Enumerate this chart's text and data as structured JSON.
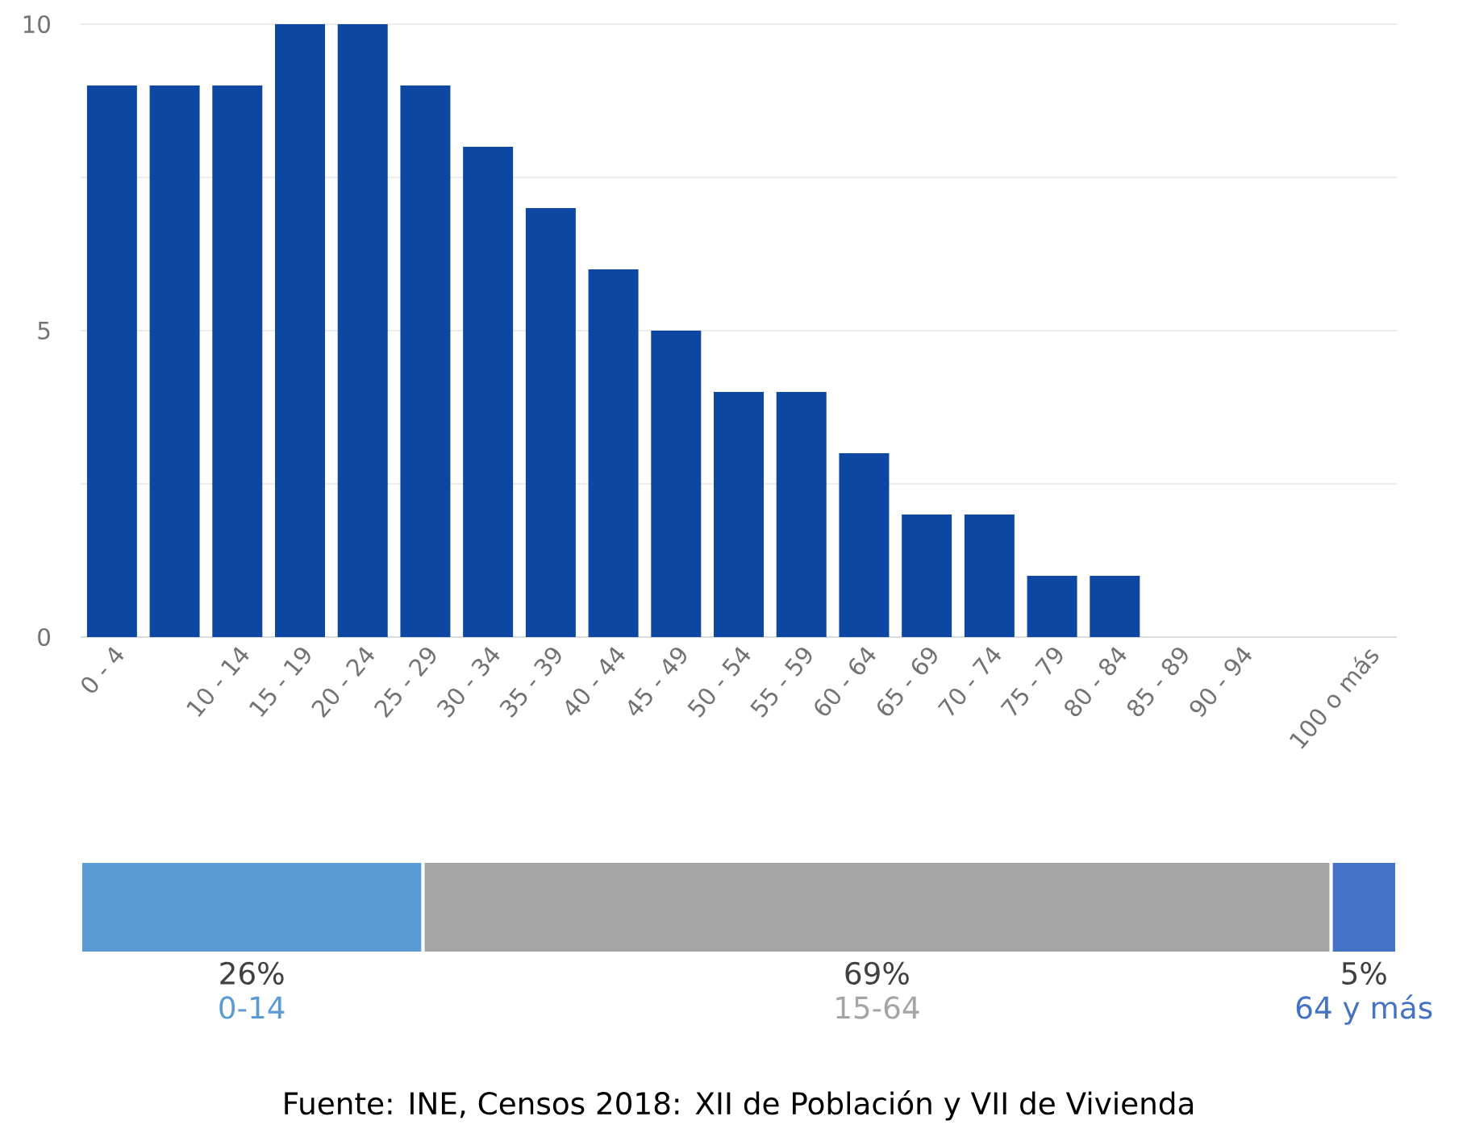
{
  "chart_data": [
    {
      "type": "bar",
      "categories": [
        "0 - 4",
        null,
        "10 - 14",
        "15 - 19",
        "20 - 24",
        "25 - 29",
        "30 - 34",
        "35 - 39",
        "40 - 44",
        "45 - 49",
        "50 - 54",
        "55 - 59",
        "60 - 64",
        "65 - 69",
        "70 - 74",
        "75 - 79",
        "80 - 84",
        "85 - 89",
        "90 - 94",
        null,
        "100 o más"
      ],
      "values": [
        9,
        9,
        9,
        10,
        10,
        9,
        8,
        7,
        6,
        5,
        4,
        4,
        3,
        2,
        2,
        1,
        1,
        0,
        0,
        0,
        0
      ],
      "color": "#0d47a1",
      "ylim": [
        0,
        10
      ],
      "yticks": [
        0,
        {
          "value": 2.5,
          "label": null
        },
        5,
        {
          "value": 7.5,
          "label": null
        },
        10
      ],
      "grid": "y"
    },
    {
      "type": "bar",
      "orientation": "horizontal",
      "stacked": true,
      "categories": [
        null
      ],
      "series": [
        {
          "name": "0-14",
          "color": "#5b9bd5",
          "values": [
            26
          ],
          "value_labels": [
            "26%"
          ]
        },
        {
          "name": "15-64",
          "color": "#a5a5a5",
          "values": [
            69
          ],
          "value_labels": [
            "69%"
          ]
        },
        {
          "name": "64 y más",
          "color": "#4472c4",
          "values": [
            5
          ],
          "value_labels": [
            "5%"
          ]
        }
      ],
      "xlim": [
        0,
        100
      ],
      "tick_labels": false,
      "annotations": [
        "Fuente: INE, Censos 2018: XII de Población y VII de Vivienda"
      ]
    }
  ]
}
